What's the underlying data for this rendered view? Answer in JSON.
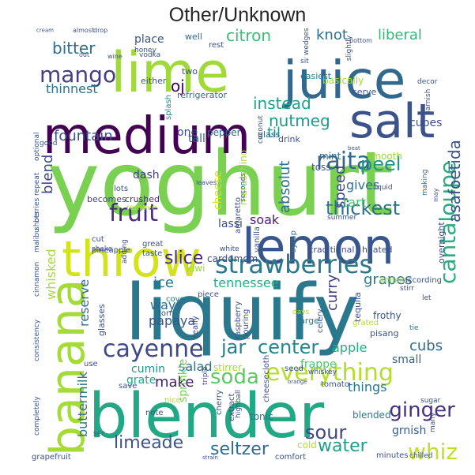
{
  "title": "Other/Unknown",
  "words": [
    {
      "text": "yoghurt",
      "color": "#7ad151"
    },
    {
      "text": "liquify",
      "color": "#2a788e"
    },
    {
      "text": "blender",
      "color": "#22a884"
    },
    {
      "text": "lime",
      "color": "#a0da39"
    },
    {
      "text": "juice",
      "color": "#31688e"
    },
    {
      "text": "medium",
      "color": "#440154"
    },
    {
      "text": "lemon",
      "color": "#39568c"
    },
    {
      "text": "throw",
      "color": "#d2e21b"
    },
    {
      "text": "banana",
      "color": "#a5db36"
    },
    {
      "text": "salt",
      "color": "#3b528b"
    },
    {
      "text": "strawberries",
      "color": "#2a788e"
    },
    {
      "text": "everything",
      "color": "#b5de2b"
    },
    {
      "text": "cayenne",
      "color": "#3e4989"
    },
    {
      "text": "fruit",
      "color": "#472d7b"
    },
    {
      "text": "raita",
      "color": "#31688e"
    },
    {
      "text": "soda",
      "color": "#5ec962"
    },
    {
      "text": "mango",
      "color": "#433e85"
    },
    {
      "text": "cantaloupe",
      "color": "#27ad81"
    },
    {
      "text": "whiz",
      "color": "#c2df23"
    },
    {
      "text": "ginger",
      "color": "#46327e"
    },
    {
      "text": "sour",
      "color": "#404688"
    },
    {
      "text": "water",
      "color": "#1f9e89"
    },
    {
      "text": "limeade",
      "color": "#3b528b"
    },
    {
      "text": "seltzer",
      "color": "#2d708e"
    },
    {
      "text": "slice",
      "color": "#482878"
    },
    {
      "text": "jar",
      "color": "#277f8e"
    },
    {
      "text": "center",
      "color": "#25858e"
    },
    {
      "text": "thickest",
      "color": "#2c728e"
    },
    {
      "text": "peel",
      "color": "#21918c"
    },
    {
      "text": "citron",
      "color": "#3fbc73"
    },
    {
      "text": "bitter",
      "color": "#2e6e8e"
    },
    {
      "text": "instead",
      "color": "#1fa187"
    },
    {
      "text": "nutmeg",
      "color": "#1e9b8a"
    },
    {
      "text": "asafoetida",
      "color": "#3b528b"
    },
    {
      "text": "oj",
      "color": "#440154"
    },
    {
      "text": "knot",
      "color": "#2d708e"
    },
    {
      "text": "liberal",
      "color": "#34b679"
    },
    {
      "text": "fountain",
      "color": "#3b528b"
    },
    {
      "text": "thinnest",
      "color": "#2c728e"
    },
    {
      "text": "blend",
      "color": "#3e4989"
    },
    {
      "text": "absolut",
      "color": "#2e6e8e"
    },
    {
      "text": "til",
      "color": "#1f9e89"
    },
    {
      "text": "speed",
      "color": "#404688"
    },
    {
      "text": "gives",
      "color": "#2d708e"
    },
    {
      "text": "tart",
      "color": "#4ac16d"
    },
    {
      "text": "soak",
      "color": "#481f70"
    },
    {
      "text": "lassi",
      "color": "#3d4e8a"
    },
    {
      "text": "tennessee",
      "color": "#27ad81"
    },
    {
      "text": "curry",
      "color": "#433e85"
    },
    {
      "text": "grapes",
      "color": "#2a788e"
    },
    {
      "text": "cubs",
      "color": "#31688e"
    },
    {
      "text": "apple",
      "color": "#28ae80"
    },
    {
      "text": "ice",
      "color": "#2c728e"
    },
    {
      "text": "make",
      "color": "#481a6c"
    },
    {
      "text": "salad",
      "color": "#2e6e8e"
    },
    {
      "text": "things",
      "color": "#2c728e"
    },
    {
      "text": "buttermilk",
      "color": "#2d708e"
    },
    {
      "text": "reserve",
      "color": "#2f6c8e"
    },
    {
      "text": "whisked",
      "color": "#a8db34"
    },
    {
      "text": "cubes",
      "color": "#3b528b"
    },
    {
      "text": "place",
      "color": "#3a538b"
    },
    {
      "text": "basically",
      "color": "#a0da39"
    },
    {
      "text": "cheese",
      "color": "#d8e219"
    },
    {
      "text": "maraschino",
      "color": "#a5db36"
    },
    {
      "text": "ways",
      "color": "#30698e"
    },
    {
      "text": "papaya",
      "color": "#3b528b"
    },
    {
      "text": "cumin",
      "color": "#21918c"
    },
    {
      "text": "grate",
      "color": "#22a785"
    },
    {
      "text": "sprinkle",
      "color": "#75d054"
    },
    {
      "text": "frappe",
      "color": "#52c569"
    },
    {
      "text": "small",
      "color": "#31688e"
    },
    {
      "text": "stirrer",
      "color": "#a0da39"
    },
    {
      "text": "cardomom",
      "color": "#3e4989"
    },
    {
      "text": "grnish",
      "color": "#365c8d"
    },
    {
      "text": "cold",
      "color": "#b5de2b"
    },
    {
      "text": "tonic",
      "color": "#2c728e"
    },
    {
      "text": "blended",
      "color": "#2a788e"
    },
    {
      "text": "kiwi",
      "color": "#95d840"
    },
    {
      "text": "smooth",
      "color": "#9bd93c"
    },
    {
      "text": "toss",
      "color": "#3b528b"
    },
    {
      "text": "mint",
      "color": "#30698e"
    },
    {
      "text": "dash",
      "color": "#433e85"
    },
    {
      "text": "tall",
      "color": "#35608d"
    },
    {
      "text": "one",
      "color": "#3e4989"
    },
    {
      "text": "pepper",
      "color": "#31688e"
    },
    {
      "text": "glass",
      "color": "#31688e"
    },
    {
      "text": "drink",
      "color": "#3b528b"
    },
    {
      "text": "serve",
      "color": "#3b528b"
    },
    {
      "text": "easiest",
      "color": "#2a788e"
    },
    {
      "text": "refrigerator",
      "color": "#2d708e"
    },
    {
      "text": "two",
      "color": "#3b528b"
    },
    {
      "text": "either",
      "color": "#3b528b"
    },
    {
      "text": "well",
      "color": "#2f6c8e"
    },
    {
      "text": "rest",
      "color": "#3b528b"
    },
    {
      "text": "splash",
      "color": "#25858e"
    },
    {
      "text": "crushed",
      "color": "#482878"
    },
    {
      "text": "becomes",
      "color": "#433e85"
    },
    {
      "text": "lots",
      "color": "#3b528b"
    },
    {
      "text": "remove",
      "color": "#b5de2b"
    },
    {
      "text": "leaves",
      "color": "#3b528b"
    },
    {
      "text": "seconds",
      "color": "#2c728e"
    },
    {
      "text": "amaretto",
      "color": "#3b528b"
    },
    {
      "text": "vanilla",
      "color": "#3b528b"
    },
    {
      "text": "syrup",
      "color": "#2a788e"
    },
    {
      "text": "liquid",
      "color": "#3b528b"
    },
    {
      "text": "making",
      "color": "#31688e"
    },
    {
      "text": "may",
      "color": "#3b528b"
    },
    {
      "text": "traditional",
      "color": "#3b528b"
    },
    {
      "text": "heated",
      "color": "#3b528b"
    },
    {
      "text": "overnight",
      "color": "#3e4989"
    },
    {
      "text": "according",
      "color": "#3b528b"
    },
    {
      "text": "ambon",
      "color": "#a0da39"
    },
    {
      "text": "stirr",
      "color": "#3b528b"
    },
    {
      "text": "let",
      "color": "#3b528b"
    },
    {
      "text": "tie",
      "color": "#2a788e"
    },
    {
      "text": "frothy",
      "color": "#3b528b"
    },
    {
      "text": "pisang",
      "color": "#3b528b"
    },
    {
      "text": "tequila",
      "color": "#3b528b"
    },
    {
      "text": "grated",
      "color": "#b5de2b"
    },
    {
      "text": "celery",
      "color": "#3b528b"
    },
    {
      "text": "large",
      "color": "#2a788e"
    },
    {
      "text": "days",
      "color": "#b5de2b"
    },
    {
      "text": "pouring",
      "color": "#3b528b"
    },
    {
      "text": "raspberry",
      "color": "#3b528b"
    },
    {
      "text": "piece",
      "color": "#3b528b"
    },
    {
      "text": "cover",
      "color": "#2a788e"
    },
    {
      "text": "white",
      "color": "#3b528b"
    },
    {
      "text": "great",
      "color": "#3b528b"
    },
    {
      "text": "taste",
      "color": "#3b528b"
    },
    {
      "text": "adding",
      "color": "#3b528b"
    },
    {
      "text": "pineapple",
      "color": "#3b528b"
    },
    {
      "text": "cut",
      "color": "#3b528b"
    },
    {
      "text": "shake",
      "color": "#3b528b"
    },
    {
      "text": "glasses",
      "color": "#3b528b"
    },
    {
      "text": "torn",
      "color": "#3b528b"
    },
    {
      "text": "really",
      "color": "#3b528b"
    },
    {
      "text": "use",
      "color": "#3b528b"
    },
    {
      "text": "save",
      "color": "#3b528b"
    },
    {
      "text": "nice",
      "color": "#b5de2b"
    },
    {
      "text": "note",
      "color": "#3b528b"
    },
    {
      "text": "sec",
      "color": "#3b528b"
    },
    {
      "text": "highball",
      "color": "#3b528b"
    },
    {
      "text": "extract",
      "color": "#3b528b"
    },
    {
      "text": "cherry",
      "color": "#3b528b"
    },
    {
      "text": "triple",
      "color": "#3b528b"
    },
    {
      "text": "orange",
      "color": "#3b528b"
    },
    {
      "text": "cheesecloth",
      "color": "#3b528b"
    },
    {
      "text": "tomato",
      "color": "#3b528b"
    },
    {
      "text": "seed",
      "color": "#3b528b"
    },
    {
      "text": "whiskey",
      "color": "#3b528b"
    },
    {
      "text": "comfort",
      "color": "#3b528b"
    },
    {
      "text": "strain",
      "color": "#3b528b"
    },
    {
      "text": "minutes",
      "color": "#3b528b"
    },
    {
      "text": "chilled",
      "color": "#3b528b"
    },
    {
      "text": "sugar",
      "color": "#3b528b"
    },
    {
      "text": "many",
      "color": "#3b528b"
    },
    {
      "text": "grapefruit",
      "color": "#3b528b"
    },
    {
      "text": "completely",
      "color": "#3b528b"
    },
    {
      "text": "consistency",
      "color": "#3b528b"
    },
    {
      "text": "cinnamon",
      "color": "#3b528b"
    },
    {
      "text": "malibu",
      "color": "#3b528b"
    },
    {
      "text": "shots",
      "color": "#3b528b"
    },
    {
      "text": "berries",
      "color": "#3b528b"
    },
    {
      "text": "repeat",
      "color": "#3b528b"
    },
    {
      "text": "optional",
      "color": "#3b528b"
    },
    {
      "text": "good",
      "color": "#3b528b"
    },
    {
      "text": "coconut",
      "color": "#3b528b"
    },
    {
      "text": "summer",
      "color": "#3b528b"
    },
    {
      "text": "garnish",
      "color": "#3b528b"
    },
    {
      "text": "decor",
      "color": "#3b528b"
    },
    {
      "text": "wedges",
      "color": "#3b528b"
    },
    {
      "text": "slightly",
      "color": "#3b528b"
    },
    {
      "text": "bottom",
      "color": "#3b528b"
    },
    {
      "text": "sit",
      "color": "#3b528b"
    },
    {
      "text": "honey",
      "color": "#3b528b"
    },
    {
      "text": "vodka",
      "color": "#3b528b"
    },
    {
      "text": "almost",
      "color": "#3b528b"
    },
    {
      "text": "drop",
      "color": "#3b528b"
    },
    {
      "text": "cream",
      "color": "#3b528b"
    },
    {
      "text": "wine",
      "color": "#3b528b"
    },
    {
      "text": "out",
      "color": "#3b528b"
    },
    {
      "text": "beat",
      "color": "#3b528b"
    }
  ]
}
